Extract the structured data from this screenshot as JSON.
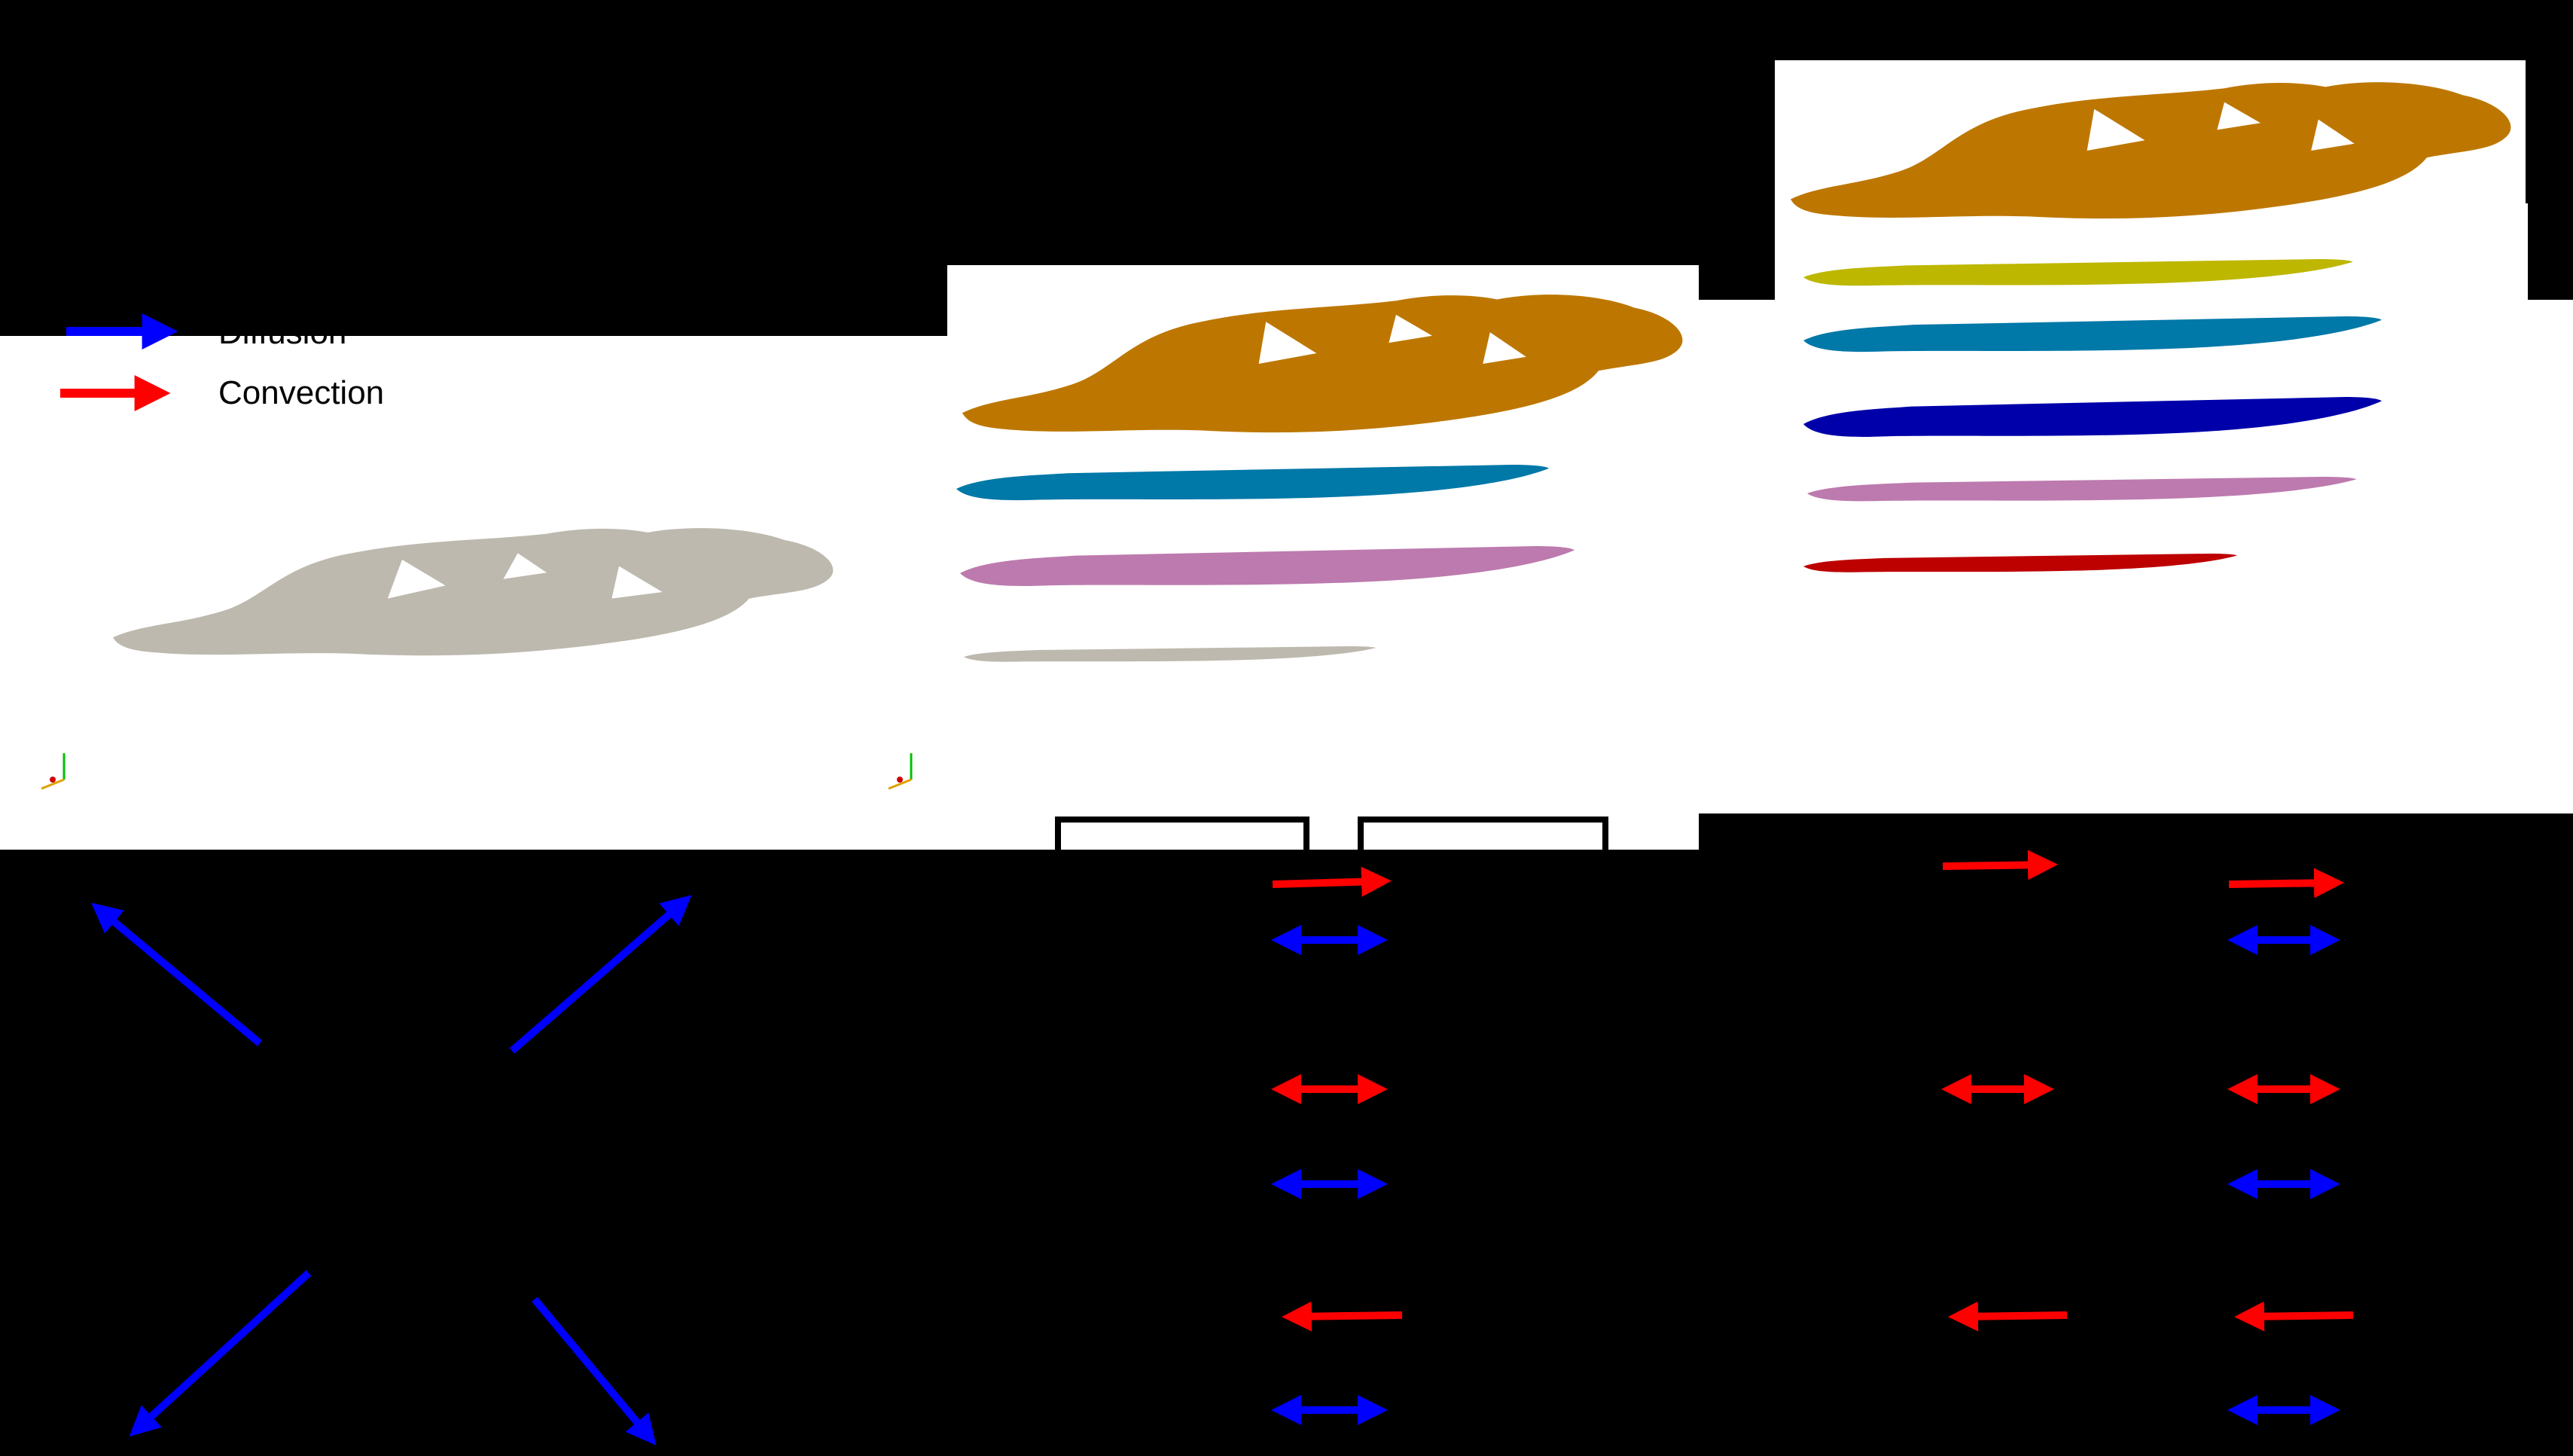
{
  "legend": {
    "items": [
      {
        "label": "Diffusion",
        "color": "#0000ff"
      },
      {
        "label": "Convection",
        "color": "#ff0000"
      }
    ]
  },
  "colors": {
    "background": "#000000",
    "panel": "#ffffff",
    "whole_brain": "#bdb9ae",
    "brain_orange": "#bd7700",
    "teal": "#0078a8",
    "pink": "#bd7aae",
    "gray_slab": "#bdb9ae",
    "olive": "#bdb700",
    "navy": "#0000aa",
    "dark_red": "#bd0000",
    "diffusion": "#0000ff",
    "convection": "#ff0000"
  },
  "panels": [
    {
      "name": "single-compartment-brain",
      "layers": [
        "whole_brain"
      ]
    },
    {
      "name": "four-compartment-brain",
      "layers": [
        "brain_orange",
        "teal",
        "pink",
        "gray_slab"
      ]
    },
    {
      "name": "six-compartment-brain",
      "layers": [
        "brain_orange",
        "olive",
        "teal",
        "navy",
        "pink",
        "dark_red"
      ]
    }
  ],
  "arrows": {
    "single_panel": [
      "diffusion-up-left",
      "diffusion-up-right",
      "diffusion-down-left",
      "diffusion-down-right"
    ],
    "column_a": [
      "convection-right",
      "diffusion-bidirectional",
      "convection-bidirectional",
      "diffusion-bidirectional",
      "convection-left",
      "diffusion-bidirectional"
    ],
    "column_b": [
      "convection-right",
      "convection-bidirectional",
      "convection-left"
    ],
    "column_c": [
      "convection-right",
      "diffusion-bidirectional",
      "convection-bidirectional",
      "diffusion-bidirectional",
      "convection-left",
      "diffusion-bidirectional"
    ]
  }
}
